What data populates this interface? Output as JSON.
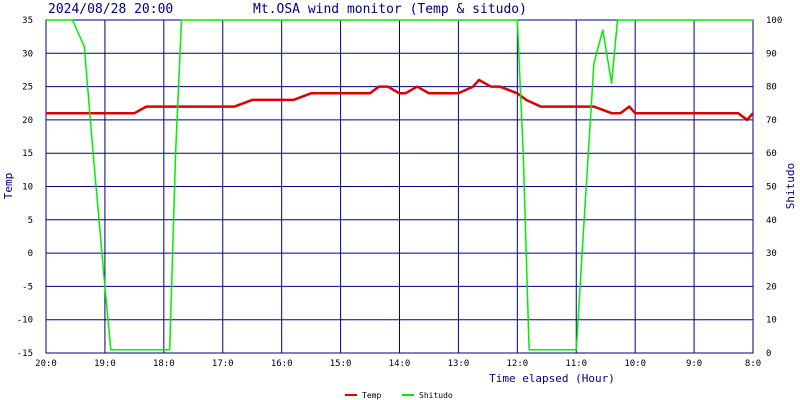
{
  "header": {
    "datetime": "2024/08/28 20:00",
    "title": "Mt.OSA wind monitor (Temp & situdo)"
  },
  "chart_data": {
    "type": "line",
    "title": "Mt.OSA wind monitor (Temp & situdo)",
    "xlabel": "Time elapsed (Hour)",
    "ylabel_left": "Temp",
    "ylabel_right": "Shitudo",
    "x_tick_labels": [
      "20:0",
      "19:0",
      "18:0",
      "17:0",
      "16:0",
      "15:0",
      "14:0",
      "13:0",
      "12:0",
      "11:0",
      "10:0",
      "9:0",
      "8:0"
    ],
    "xlim": [
      0,
      12
    ],
    "ylim_left": [
      -15,
      35
    ],
    "yticks_left": [
      "35",
      "30",
      "25",
      "20",
      "15",
      "10",
      "5",
      "0",
      "-5",
      "-10",
      "-15"
    ],
    "ylim_right": [
      0,
      100
    ],
    "yticks_right": [
      "100",
      "90",
      "80",
      "70",
      "60",
      "50",
      "40",
      "30",
      "20",
      "10",
      "0"
    ],
    "grid": true,
    "legend_position": "bottom-center",
    "series": [
      {
        "name": "Temp",
        "axis": "left",
        "color": "#dd0000",
        "x": [
          0,
          1,
          1.5,
          1.7,
          2,
          3,
          3.2,
          3.5,
          4,
          4.2,
          4.5,
          5,
          5.2,
          5.4,
          5.5,
          5.65,
          5.8,
          6,
          6.1,
          6.3,
          6.5,
          7,
          7.25,
          7.35,
          7.55,
          7.7,
          8.0,
          8.15,
          8.4,
          8.6,
          9.0,
          9.2,
          9.3,
          9.6,
          9.75,
          9.9,
          10,
          11,
          11.75,
          11.9,
          12
        ],
        "y": [
          21,
          21,
          21,
          22,
          22,
          22,
          22,
          23,
          23,
          23,
          24,
          24,
          24,
          24,
          24,
          25,
          25,
          24,
          24,
          25,
          24,
          24,
          25,
          26,
          25,
          25,
          24,
          23,
          22,
          22,
          22,
          22,
          22,
          21,
          21,
          22,
          21,
          21,
          21,
          20,
          21
        ]
      },
      {
        "name": "Shitudo",
        "axis": "right",
        "color": "#00ee00",
        "x": [
          0,
          0.45,
          0.65,
          0.8,
          1.0,
          1.1,
          2.1,
          2.2,
          2.3,
          7.0,
          8.0,
          8.1,
          8.15,
          8.2,
          9.0,
          9.1,
          9.3,
          9.45,
          9.6,
          9.7,
          9.8,
          12
        ],
        "y": [
          100,
          100,
          92,
          60,
          20,
          1,
          1,
          60,
          100,
          100,
          100,
          60,
          30,
          1,
          1,
          30,
          87,
          97,
          81,
          100,
          100,
          100
        ]
      }
    ]
  }
}
